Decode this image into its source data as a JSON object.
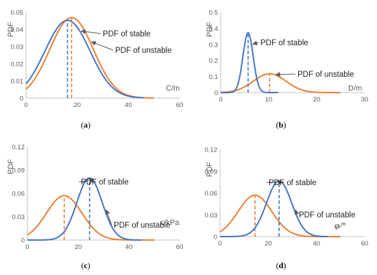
{
  "colors": {
    "stable": "#4472C4",
    "unstable": "#ED7D31",
    "axis": "#bfbfbf",
    "tick_text": "#595959",
    "arrow": "#595959"
  },
  "chart_data": [
    {
      "panel": "(a)",
      "type": "line",
      "ylabel": "PDF",
      "xlabel": "C/m",
      "xlabel_italic": false,
      "xlim": [
        0,
        60
      ],
      "xticks": [
        0,
        20,
        40,
        60
      ],
      "ylim": [
        0,
        0.05
      ],
      "yticks": [
        "0",
        "0.01",
        "0.02",
        "0.03",
        "0.04",
        "0.05"
      ],
      "series": [
        {
          "key": "stable",
          "mu": 16.2,
          "sigma": 8.8,
          "x_range": [
            0,
            46
          ],
          "mean_line": 16.2
        },
        {
          "key": "unstable",
          "mu": 17.8,
          "sigma": 8.5,
          "x_range": [
            0,
            50
          ],
          "mean_line": 17.8
        }
      ],
      "annotations": [
        {
          "text": "PDF of stable",
          "series": "stable",
          "at_x": 21
        },
        {
          "text": "PDF of unstable",
          "series": "unstable",
          "at_x": 25
        }
      ]
    },
    {
      "panel": "(b)",
      "type": "line",
      "ylabel": "PDF",
      "xlabel": "D/m",
      "xlabel_italic": false,
      "xlim": [
        0,
        30
      ],
      "xticks": [
        0,
        10,
        20,
        30
      ],
      "ylim": [
        0,
        0.5
      ],
      "yticks": [
        "0",
        "0.1",
        "0.2",
        "0.3",
        "0.4",
        "0.5"
      ],
      "series": [
        {
          "key": "stable",
          "mu": 5.7,
          "sigma": 1.07,
          "x_range": [
            0,
            12
          ],
          "mean_line": 5.7
        },
        {
          "key": "unstable",
          "mu": 10.2,
          "sigma": 3.4,
          "x_range": [
            0,
            25
          ],
          "mean_line": 10.2
        }
      ],
      "annotations": [
        {
          "text": "PDF of stable",
          "series": "stable",
          "at_x": 6.4
        },
        {
          "text": "PDF of unstable",
          "series": "unstable",
          "at_x": 11.2
        }
      ]
    },
    {
      "panel": "(c)",
      "type": "line",
      "ylabel": "PDF",
      "xlabel": "c/kPa",
      "xlabel_italic": false,
      "xlim": [
        0,
        60
      ],
      "xticks": [
        0,
        20,
        40,
        60
      ],
      "ylim": [
        0,
        0.12
      ],
      "yticks": [
        "0",
        "0.03",
        "0.06",
        "0.09",
        "0.12"
      ],
      "series": [
        {
          "key": "stable",
          "mu": 24.5,
          "sigma": 5.0,
          "x_range": [
            0,
            45
          ],
          "mean_line": 24.5
        },
        {
          "key": "unstable",
          "mu": 14.5,
          "sigma": 7.0,
          "x_range": [
            0,
            50
          ],
          "mean_line": 14.5
        }
      ],
      "annotations": [
        {
          "text": "PDF of stable",
          "series": "stable",
          "at_x": 25.8
        },
        {
          "text": "PDF of unstable",
          "series": "stable",
          "at_x": 30.5
        }
      ]
    },
    {
      "panel": "(d)",
      "type": "line",
      "ylabel": "PDF",
      "xlabel": "φ/°",
      "xlabel_italic": true,
      "xlim": [
        0,
        60
      ],
      "xticks": [
        0,
        20,
        40,
        60
      ],
      "ylim": [
        0,
        0.12
      ],
      "yticks": [
        "0",
        "0.03",
        "0.06",
        "0.09",
        "0.12"
      ],
      "series": [
        {
          "key": "stable",
          "mu": 24.5,
          "sigma": 5.2,
          "x_range": [
            0,
            45
          ],
          "mean_line": 24.5
        },
        {
          "key": "unstable",
          "mu": 14.5,
          "sigma": 7.0,
          "x_range": [
            0,
            50
          ],
          "mean_line": 14.5
        }
      ],
      "annotations": [
        {
          "text": "PDF of stable",
          "series": "stable",
          "at_x": 25.5
        },
        {
          "text": "PDF of unstable",
          "series": "stable",
          "at_x": 30.8
        }
      ]
    }
  ]
}
